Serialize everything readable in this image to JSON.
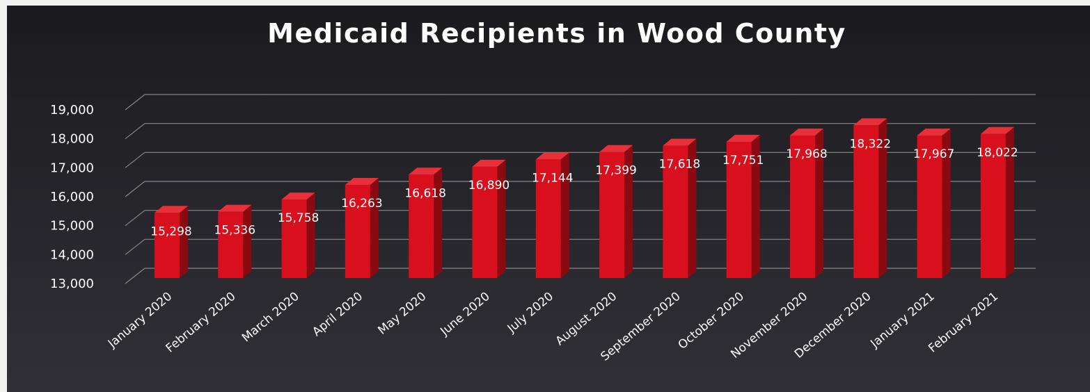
{
  "chart_data": {
    "type": "bar",
    "title": "Medicaid Recipients in Wood County",
    "xlabel": "",
    "ylabel": "",
    "categories": [
      "January 2020",
      "February 2020",
      "March 2020",
      "April 2020",
      "May 2020",
      "June 2020",
      "July 2020",
      "August 2020",
      "September 2020",
      "October 2020",
      "November 2020",
      "December 2020",
      "January 2021",
      "February 2021"
    ],
    "values": [
      15298,
      15336,
      15758,
      16263,
      16618,
      16890,
      17144,
      17399,
      17618,
      17751,
      17968,
      18322,
      17967,
      18022
    ],
    "data_labels": [
      "15,298",
      "15,336",
      "15,758",
      "16,263",
      "16,618",
      "16,890",
      "17,144",
      "17,399",
      "17,618",
      "17,751",
      "17,968",
      "18,322",
      "17,967",
      "18,022"
    ],
    "ylim": [
      13000,
      19000
    ],
    "yticks": [
      13000,
      14000,
      15000,
      16000,
      17000,
      18000,
      19000
    ],
    "ytick_labels": [
      "13,000",
      "14,000",
      "15,000",
      "16,000",
      "17,000",
      "18,000",
      "19,000"
    ],
    "grid": true,
    "legend": "none",
    "colors": {
      "bar_front": "#d8101e",
      "bar_side": "#8a0a12",
      "bar_top": "#e8303a",
      "background": "#222227",
      "text": "#ffffff",
      "grid": "#9a9a9a"
    }
  }
}
